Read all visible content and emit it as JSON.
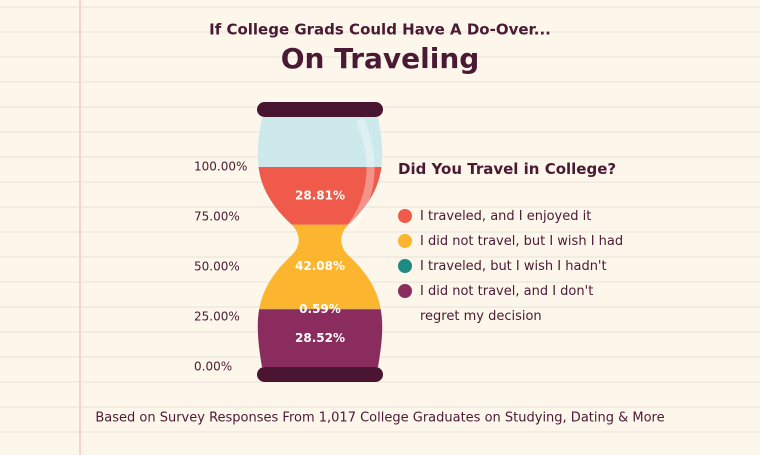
{
  "chart_data": {
    "type": "bar",
    "stacked": true,
    "subtitle": "If College Grads Could Have A Do-Over...",
    "title": "On Traveling",
    "legend_title": "Did You Travel in College?",
    "footnote": "Based on Survey Responses From 1,017 College Graduates on Studying, Dating & More",
    "series": [
      {
        "name": "I traveled, and I enjoyed it",
        "color": "#ef5a4a",
        "values": [
          28.81
        ],
        "value_labels": [
          "28.81%"
        ]
      },
      {
        "name": "I did not travel, but I wish I had",
        "color": "#fbb52f",
        "values": [
          42.08
        ],
        "value_labels": [
          "42.08%"
        ]
      },
      {
        "name": "I traveled, but I wish I hadn't",
        "color": "#1e8a80",
        "values": [
          0.59
        ],
        "value_labels": [
          "0.59%"
        ]
      },
      {
        "name": "I did not travel, and I don't regret my decision",
        "color": "#8a2d5e",
        "values": [
          28.52
        ],
        "value_labels": [
          "28.52%"
        ]
      }
    ],
    "ylim": [
      0,
      100
    ],
    "yticks": [
      {
        "value": 0,
        "label": "0.00%"
      },
      {
        "value": 25,
        "label": "25.00%"
      },
      {
        "value": 50,
        "label": "50.00%"
      },
      {
        "value": 75,
        "label": "75.00%"
      },
      {
        "value": 100,
        "label": "100.00%"
      }
    ]
  }
}
